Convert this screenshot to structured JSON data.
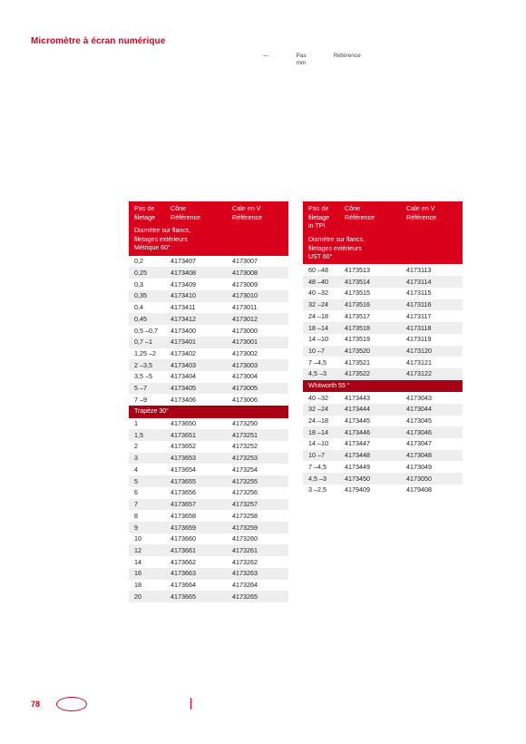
{
  "title": "Micromètre à écran numérique",
  "topright": {
    "c1a": "—",
    "c1b": "",
    "c2a": "Pas",
    "c2b": "mm",
    "c3a": "Référence",
    "c3b": ""
  },
  "left": {
    "hdr": {
      "pitch": "Pas de\nfiletage",
      "cone": "Cône\nRéférence",
      "cale": "Cale en V\nRéférence"
    },
    "section1": "Diamètre sur flancs,\nfiletages extérieurs\nMétrique 60°",
    "rows1": [
      [
        "0,2",
        "4173407",
        "4173007"
      ],
      [
        "0,25",
        "4173408",
        "4173008"
      ],
      [
        "0,3",
        "4173409",
        "4173009"
      ],
      [
        "0,35",
        "4173410",
        "4173010"
      ],
      [
        "0,4",
        "4173411",
        "4173011"
      ],
      [
        "0,45",
        "4173412",
        "4173012"
      ],
      [
        "0,5 –0,7",
        "4173400",
        "4173000"
      ],
      [
        "0,7 –1",
        "4173401",
        "4173001"
      ],
      [
        "1,25 –2",
        "4173402",
        "4173002"
      ],
      [
        "2 –3,5",
        "4173403",
        "4173003"
      ],
      [
        "3,5 –5",
        "4173404",
        "4173004"
      ],
      [
        "5 –7",
        "4173405",
        "4173005"
      ],
      [
        "7 –9",
        "4173406",
        "4173006"
      ]
    ],
    "section2": "Trapèze 30°",
    "rows2": [
      [
        "1",
        "4173650",
        "4173250"
      ],
      [
        "1,5",
        "4173651",
        "4173251"
      ],
      [
        "2",
        "4173652",
        "4173252"
      ],
      [
        "3",
        "4173653",
        "4173253"
      ],
      [
        "4",
        "4173654",
        "4173254"
      ],
      [
        "5",
        "4173655",
        "4173255"
      ],
      [
        "6",
        "4173656",
        "4173256"
      ],
      [
        "7",
        "4173657",
        "4173257"
      ],
      [
        "8",
        "4173658",
        "4173258"
      ],
      [
        "9",
        "4173659",
        "4173259"
      ],
      [
        "10",
        "4173660",
        "4173260"
      ],
      [
        "12",
        "4173661",
        "4173261"
      ],
      [
        "14",
        "4173662",
        "4173262"
      ],
      [
        "16",
        "4173663",
        "4173263"
      ],
      [
        "18",
        "4173664",
        "4173264"
      ],
      [
        "20",
        "4173665",
        "4173265"
      ]
    ]
  },
  "right": {
    "hdr": {
      "pitch": "Pas de\nfiletage\nin TPI",
      "cone": "Cône\nRéférence",
      "cale": "Cale en V\nRéférence"
    },
    "section1": "Diamètre sur flancs,\nfiletages extérieurs\nUST 60°",
    "rows1": [
      [
        "60 –48",
        "4173513",
        "4173113"
      ],
      [
        "48 –40",
        "4173514",
        "4173114"
      ],
      [
        "40 –32",
        "4173515",
        "4173115"
      ],
      [
        "32 –24",
        "4173516",
        "4173116"
      ],
      [
        "24 –18",
        "4173517",
        "4173117"
      ],
      [
        "18 –14",
        "4173518",
        "4173118"
      ],
      [
        "14 –10",
        "4173519",
        "4173119"
      ],
      [
        "10 –7",
        "4173520",
        "4173120"
      ],
      [
        "7 –4,5",
        "4173521",
        "4173121"
      ],
      [
        "4,5 –3",
        "4173522",
        "4173122"
      ]
    ],
    "section2": "Whitworth 55 °",
    "rows2": [
      [
        "40 –32",
        "4173443",
        "4173043"
      ],
      [
        "32 –24",
        "4173444",
        "4173044"
      ],
      [
        "24 –18",
        "4173445",
        "4173045"
      ],
      [
        "18 –14",
        "4173446",
        "4173046"
      ],
      [
        "14 –10",
        "4173447",
        "4173047"
      ],
      [
        "10 –7",
        "4173448",
        "4173048"
      ],
      [
        "7 –4,5",
        "4173449",
        "4173049"
      ],
      [
        "4,5 –3",
        "4173450",
        "4173050"
      ],
      [
        "3 –2,5",
        "4179409",
        "4179408"
      ]
    ]
  },
  "footer": {
    "page": "78"
  }
}
